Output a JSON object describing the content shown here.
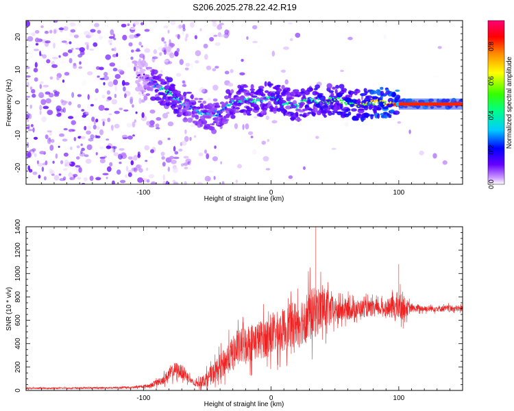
{
  "title": "S206.2025.278.22.42.R19",
  "chart_data": [
    {
      "type": "heatmap",
      "title": "S206.2025.278.22.42.R19",
      "xlabel": "Height of straight line (km)",
      "ylabel": "Frequency (Hz)",
      "xlim": [
        -192,
        150
      ],
      "ylim": [
        -25,
        25
      ],
      "xticks": [
        -100,
        0,
        100
      ],
      "yticks": [
        -20,
        -10,
        0,
        10,
        20
      ],
      "colorbar": {
        "label": "Normalized spectral amplitude",
        "range": [
          0.0,
          0.95
        ],
        "ticks": [
          0.0,
          0.2,
          0.4,
          0.6,
          0.8
        ],
        "tick_labels": [
          "0.0",
          "0.2",
          "0.4",
          "0.6",
          "0.8"
        ]
      },
      "ridge": {
        "x": [
          -100,
          -90,
          -80,
          -70,
          -60,
          -50,
          -40,
          -30,
          -20,
          -10,
          0,
          10,
          20,
          30,
          40,
          50,
          60,
          70,
          80,
          90,
          100,
          110,
          120,
          130,
          140,
          150
        ],
        "freq": [
          8,
          5,
          3,
          0,
          -2,
          -4,
          -3,
          0,
          1,
          0,
          2,
          0,
          -1,
          1,
          0,
          1,
          0,
          -1,
          0,
          0,
          -0.5,
          -0.5,
          -0.5,
          -0.5,
          -0.5,
          -0.5
        ],
        "amplitude": [
          0.1,
          0.35,
          0.45,
          0.35,
          0.3,
          0.35,
          0.3,
          0.35,
          0.4,
          0.4,
          0.4,
          0.45,
          0.4,
          0.45,
          0.5,
          0.5,
          0.55,
          0.6,
          0.7,
          0.75,
          0.85,
          0.9,
          0.9,
          0.9,
          0.9,
          0.9
        ]
      }
    },
    {
      "type": "line",
      "xlabel": "Height of straight line (km)",
      "ylabel": "SNR (10 * v/v)",
      "xlim": [
        -192,
        150
      ],
      "ylim": [
        0,
        1400
      ],
      "xticks": [
        -100,
        0,
        100
      ],
      "yticks": [
        0,
        200,
        400,
        600,
        800,
        1000,
        1200,
        1400
      ],
      "color": "#ee2222",
      "envelope": {
        "x": [
          -192,
          -150,
          -110,
          -95,
          -85,
          -75,
          -68,
          -60,
          -50,
          -40,
          -30,
          -20,
          -10,
          0,
          10,
          20,
          30,
          40,
          50,
          60,
          70,
          80,
          90,
          100,
          110,
          120,
          130,
          140,
          150
        ],
        "mean": [
          18,
          20,
          25,
          40,
          90,
          180,
          150,
          50,
          100,
          200,
          320,
          400,
          430,
          470,
          520,
          580,
          640,
          700,
          680,
          690,
          700,
          700,
          700,
          720,
          700,
          700,
          700,
          700,
          700
        ],
        "spread": [
          12,
          12,
          15,
          30,
          70,
          120,
          100,
          40,
          120,
          200,
          260,
          300,
          300,
          320,
          340,
          360,
          420,
          360,
          200,
          160,
          140,
          120,
          110,
          250,
          60,
          50,
          50,
          50,
          50
        ]
      },
      "notable_peaks": {
        "x": [
          35,
          100
        ],
        "y": [
          1400,
          1080
        ]
      }
    }
  ]
}
